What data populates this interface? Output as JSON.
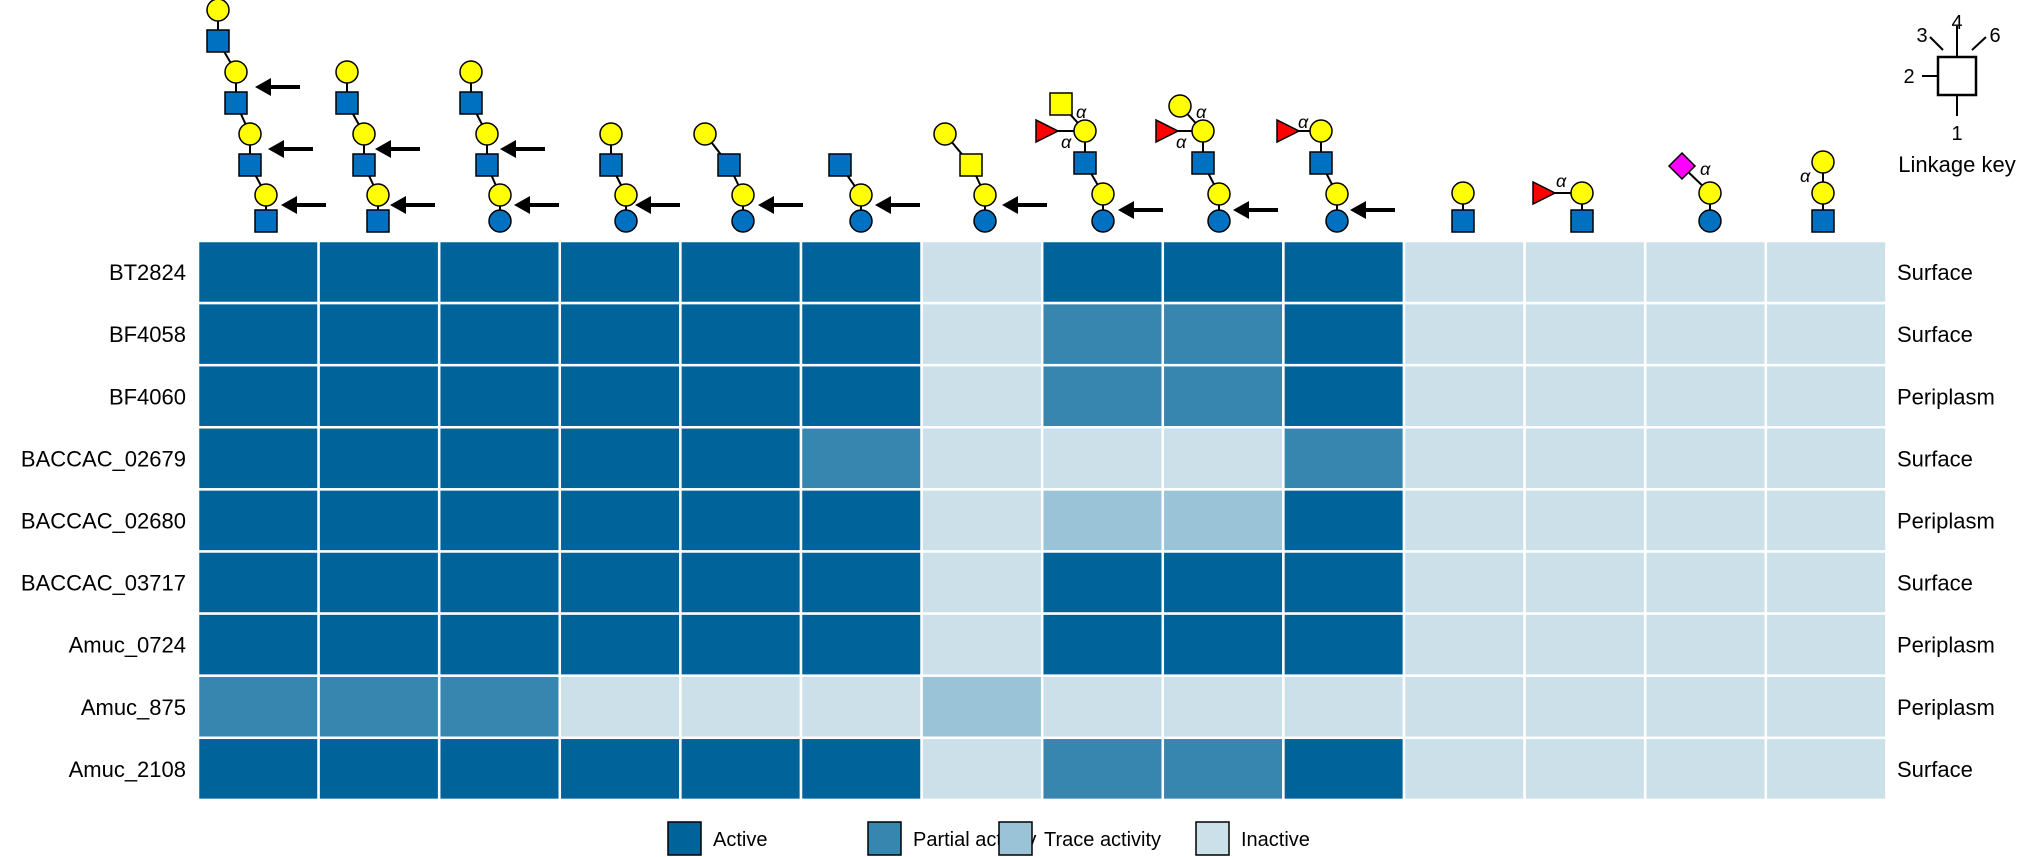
{
  "colors": {
    "active": "#006399",
    "partial": "#3686b0",
    "trace": "#9bc3d8",
    "inactive": "#cce0ea",
    "grid": "#ffffff",
    "galactose": "#ffff00",
    "glcnac": "#0070c0",
    "fucose": "#ff0000",
    "sialic": "#ff00ff"
  },
  "linkage_key": {
    "title": "Linkage key",
    "positions": [
      "1",
      "2",
      "3",
      "4",
      "6"
    ]
  },
  "glycan_labels": {
    "alpha": "α"
  },
  "chart_data": {
    "type": "heatmap",
    "levels": [
      "Active",
      "Partial activity",
      "Trace activity",
      "Inactive"
    ],
    "rows": [
      "BT2824",
      "BF4058",
      "BF4060",
      "BACCAC_02679",
      "BACCAC_02680",
      "BACCAC_03717",
      "Amuc_0724",
      "Amuc_875",
      "Amuc_2108"
    ],
    "row_locations": [
      "Surface",
      "Surface",
      "Periplasm",
      "Surface",
      "Periplasm",
      "Surface",
      "Periplasm",
      "Periplasm",
      "Surface"
    ],
    "column_count": 14,
    "values": [
      [
        "Active",
        "Active",
        "Active",
        "Active",
        "Active",
        "Active",
        "Inactive",
        "Active",
        "Active",
        "Active",
        "Inactive",
        "Inactive",
        "Inactive",
        "Inactive"
      ],
      [
        "Active",
        "Active",
        "Active",
        "Active",
        "Active",
        "Active",
        "Inactive",
        "Partial activity",
        "Partial activity",
        "Active",
        "Inactive",
        "Inactive",
        "Inactive",
        "Inactive"
      ],
      [
        "Active",
        "Active",
        "Active",
        "Active",
        "Active",
        "Active",
        "Inactive",
        "Partial activity",
        "Partial activity",
        "Active",
        "Inactive",
        "Inactive",
        "Inactive",
        "Inactive"
      ],
      [
        "Active",
        "Active",
        "Active",
        "Active",
        "Active",
        "Partial activity",
        "Inactive",
        "Inactive",
        "Inactive",
        "Partial activity",
        "Inactive",
        "Inactive",
        "Inactive",
        "Inactive"
      ],
      [
        "Active",
        "Active",
        "Active",
        "Active",
        "Active",
        "Active",
        "Inactive",
        "Trace activity",
        "Trace activity",
        "Active",
        "Inactive",
        "Inactive",
        "Inactive",
        "Inactive"
      ],
      [
        "Active",
        "Active",
        "Active",
        "Active",
        "Active",
        "Active",
        "Inactive",
        "Active",
        "Active",
        "Active",
        "Inactive",
        "Inactive",
        "Inactive",
        "Inactive"
      ],
      [
        "Active",
        "Active",
        "Active",
        "Active",
        "Active",
        "Active",
        "Inactive",
        "Active",
        "Active",
        "Active",
        "Inactive",
        "Inactive",
        "Inactive",
        "Inactive"
      ],
      [
        "Partial activity",
        "Partial activity",
        "Partial activity",
        "Inactive",
        "Inactive",
        "Inactive",
        "Trace activity",
        "Inactive",
        "Inactive",
        "Inactive",
        "Inactive",
        "Inactive",
        "Inactive",
        "Inactive"
      ],
      [
        "Active",
        "Active",
        "Active",
        "Active",
        "Active",
        "Active",
        "Inactive",
        "Partial activity",
        "Partial activity",
        "Active",
        "Inactive",
        "Inactive",
        "Inactive",
        "Inactive"
      ]
    ],
    "legend_position": "bottom-center"
  }
}
